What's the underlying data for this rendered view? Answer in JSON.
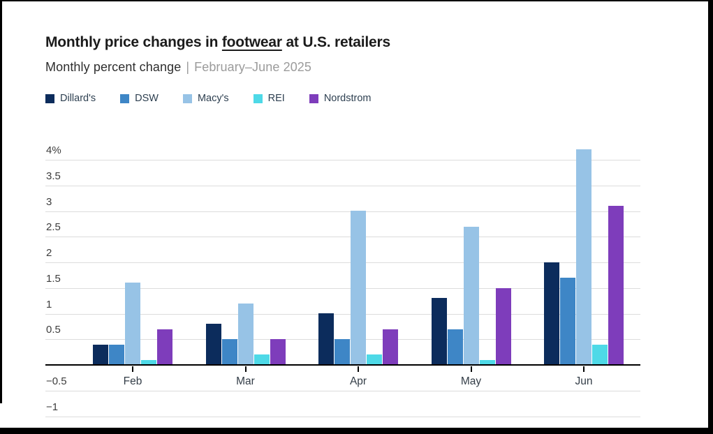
{
  "title": {
    "prefix": "Monthly price changes in ",
    "underlined": "footwear",
    "suffix": " at U.S. retailers"
  },
  "subtitle": {
    "text": "Monthly percent change",
    "separator": "|",
    "period": "February–June 2025"
  },
  "chart_data": {
    "type": "bar",
    "title": "Monthly price changes in footwear at U.S. retailers",
    "subtitle": "Monthly percent change | February–June 2025",
    "categories": [
      "Feb",
      "Mar",
      "Apr",
      "May",
      "Jun"
    ],
    "series": [
      {
        "name": "Dillard's",
        "color": "#0c2c5c",
        "values": [
          0.4,
          0.8,
          1.0,
          1.3,
          2.0
        ]
      },
      {
        "name": "DSW",
        "color": "#3e86c6",
        "values": [
          0.4,
          0.5,
          0.5,
          0.7,
          1.7
        ]
      },
      {
        "name": "Macy's",
        "color": "#97c3e6",
        "values": [
          1.6,
          1.2,
          3.0,
          2.7,
          4.2
        ]
      },
      {
        "name": "REI",
        "color": "#4ed9e7",
        "values": [
          0.1,
          0.2,
          0.2,
          0.1,
          0.4
        ]
      },
      {
        "name": "Nordstrom",
        "color": "#7e3dbb",
        "values": [
          0.7,
          0.5,
          0.7,
          1.5,
          3.1
        ]
      }
    ],
    "ylabel": "percent change",
    "ylim": [
      -1,
      4
    ],
    "yticks": [
      {
        "label": "4%",
        "value": 4
      },
      {
        "label": "3.5",
        "value": 3.5
      },
      {
        "label": "3",
        "value": 3
      },
      {
        "label": "2.5",
        "value": 2.5
      },
      {
        "label": "2",
        "value": 2
      },
      {
        "label": "1.5",
        "value": 1.5
      },
      {
        "label": "1",
        "value": 1
      },
      {
        "label": "0.5",
        "value": 0.5
      },
      {
        "label": "−0.5",
        "value": -0.5
      },
      {
        "label": "−1",
        "value": -1
      }
    ],
    "grid": true,
    "legend_position": "top"
  }
}
